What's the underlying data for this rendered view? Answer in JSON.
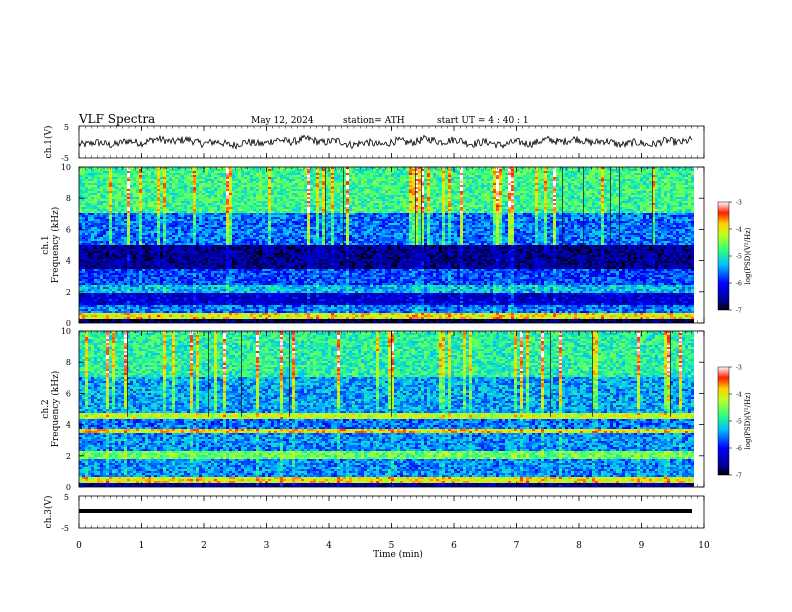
{
  "header": {
    "title": "VLF  Spectra",
    "date": "May 12, 2024",
    "station": "station= ATH",
    "start": "start  UT  =   4  : 40 : 1"
  },
  "chart_data": [
    {
      "type": "line",
      "panel": "ch1-waveform",
      "ylabel": "ch.1(V)",
      "ylim": [
        -5,
        5
      ],
      "yticks": [
        "5",
        "-5"
      ],
      "x_unit": "min",
      "x_range": [
        0,
        9.8
      ],
      "series": [
        {
          "description_free": true,
          "mean": 0.0,
          "amplitude_approx": 1.0
        }
      ]
    },
    {
      "type": "heatmap",
      "panel": "ch1-spectrogram",
      "ylabel": "Frequency  (kHz)",
      "channel_label": "ch.1",
      "ylim": [
        0,
        10
      ],
      "yticks": [
        "0",
        "2",
        "4",
        "6",
        "8",
        "10"
      ],
      "colorbar": {
        "label": "log(PSD)(V²/Hz)",
        "range": [
          -7,
          -3
        ],
        "ticks": [
          "-3",
          "-4",
          "-5",
          "-6",
          "-7"
        ],
        "colorscale": "jet"
      },
      "bands_khz": [
        {
          "from": 0.0,
          "to": 0.2,
          "level": -6.8
        },
        {
          "from": 0.2,
          "to": 0.6,
          "level": -4.0
        },
        {
          "from": 0.6,
          "to": 1.1,
          "level": -5.6
        },
        {
          "from": 1.1,
          "to": 1.9,
          "level": -6.3
        },
        {
          "from": 1.9,
          "to": 2.4,
          "level": -5.3
        },
        {
          "from": 2.4,
          "to": 3.4,
          "level": -5.8
        },
        {
          "from": 3.4,
          "to": 5.0,
          "level": -6.6
        },
        {
          "from": 5.0,
          "to": 7.0,
          "level": -5.6
        },
        {
          "from": 7.0,
          "to": 10.0,
          "level": -4.8
        }
      ]
    },
    {
      "type": "heatmap",
      "panel": "ch2-spectrogram",
      "ylabel": "Frequency  (kHz)",
      "channel_label": "ch.2",
      "ylim": [
        0,
        10
      ],
      "yticks": [
        "0",
        "2",
        "4",
        "6",
        "8",
        "10"
      ],
      "colorbar": {
        "label": "log(PSD)(V²/Hz)",
        "range": [
          -7,
          -3
        ],
        "ticks": [
          "-3",
          "-4",
          "-5",
          "-6",
          "-7"
        ],
        "colorscale": "jet"
      },
      "bands_khz": [
        {
          "from": 0.0,
          "to": 0.3,
          "level": -6.5
        },
        {
          "from": 0.3,
          "to": 0.6,
          "level": -4.0
        },
        {
          "from": 0.6,
          "to": 1.8,
          "level": -5.5
        },
        {
          "from": 1.8,
          "to": 2.3,
          "level": -4.6
        },
        {
          "from": 2.3,
          "to": 3.4,
          "level": -5.5
        },
        {
          "from": 3.4,
          "to": 3.7,
          "level": -3.9
        },
        {
          "from": 3.7,
          "to": 4.4,
          "level": -5.6
        },
        {
          "from": 4.4,
          "to": 4.8,
          "level": -4.2
        },
        {
          "from": 4.8,
          "to": 7.0,
          "level": -5.4
        },
        {
          "from": 7.0,
          "to": 10.0,
          "level": -4.9
        }
      ]
    },
    {
      "type": "line",
      "panel": "ch3-waveform",
      "ylabel": "ch.3(V)",
      "ylim": [
        -5,
        5
      ],
      "yticks": [
        "5",
        "-5"
      ],
      "series": [
        {
          "constant": -2.0
        }
      ]
    }
  ],
  "xaxis": {
    "label": "Time  (min)",
    "range": [
      0,
      10
    ],
    "ticks": [
      "0",
      "1",
      "2",
      "3",
      "4",
      "5",
      "6",
      "7",
      "8",
      "9",
      "10"
    ]
  },
  "colors": {
    "axis": "#000000",
    "background": "#ffffff"
  }
}
